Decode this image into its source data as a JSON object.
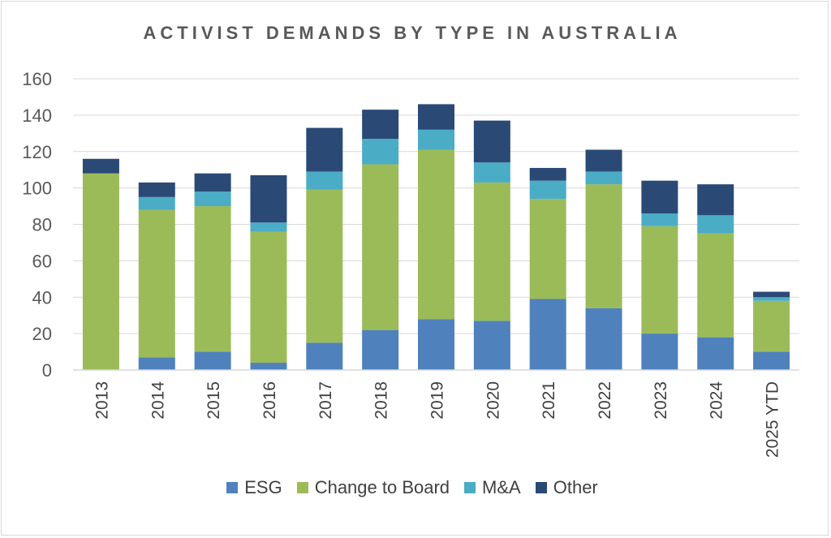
{
  "chart_data": {
    "type": "bar",
    "stacked": true,
    "title": "ACTIVIST DEMANDS BY TYPE IN AUSTRALIA",
    "xlabel": "",
    "ylabel": "",
    "ylim": [
      0,
      160
    ],
    "yticks": [
      0,
      20,
      40,
      60,
      80,
      100,
      120,
      140,
      160
    ],
    "grid": true,
    "legend_position": "bottom",
    "categories": [
      "2013",
      "2014",
      "2015",
      "2016",
      "2017",
      "2018",
      "2019",
      "2020",
      "2021",
      "2022",
      "2023",
      "2024",
      "2025 YTD"
    ],
    "series": [
      {
        "name": "ESG",
        "color": "#4f81bd",
        "values": [
          0,
          7,
          10,
          4,
          15,
          22,
          28,
          27,
          39,
          34,
          20,
          18,
          10
        ]
      },
      {
        "name": "Change to Board",
        "color": "#9bbb59",
        "values": [
          108,
          81,
          80,
          72,
          84,
          91,
          93,
          76,
          55,
          68,
          59,
          57,
          28
        ]
      },
      {
        "name": "M&A",
        "color": "#4bacc6",
        "values": [
          0,
          7,
          8,
          5,
          10,
          14,
          11,
          11,
          10,
          7,
          7,
          10,
          2
        ]
      },
      {
        "name": "Other",
        "color": "#2a4a75",
        "values": [
          8,
          8,
          10,
          26,
          24,
          16,
          14,
          23,
          7,
          12,
          18,
          17,
          3
        ]
      }
    ]
  }
}
